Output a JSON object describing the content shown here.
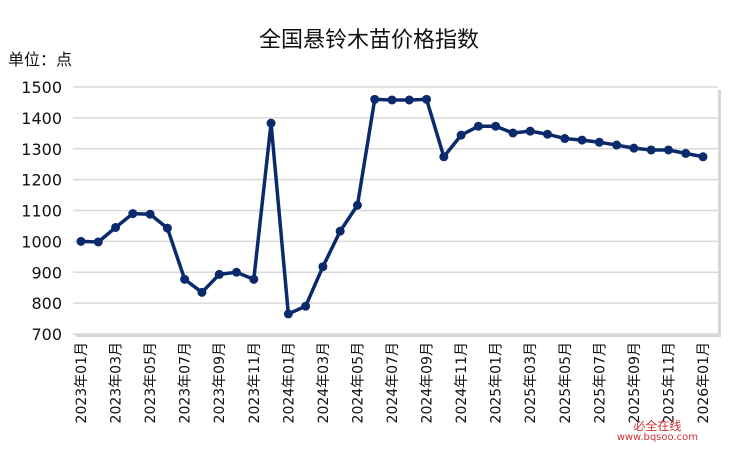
{
  "chart_data": {
    "type": "line",
    "title": "全国悬铃木苗价格指数",
    "ylabel": "单位：点",
    "ylim": [
      700,
      1500
    ],
    "yticks": [
      700,
      800,
      900,
      1000,
      1100,
      1200,
      1300,
      1400,
      1500
    ],
    "grid": true,
    "color": "#0b2a6b",
    "x": [
      "2023年01月",
      "2023年02月",
      "2023年03月",
      "2023年04月",
      "2023年05月",
      "2023年06月",
      "2023年07月",
      "2023年08月",
      "2023年09月",
      "2023年10月",
      "2023年11月",
      "2023年12月",
      "2024年01月",
      "2024年02月",
      "2024年03月",
      "2024年04月",
      "2024年05月",
      "2024年06月",
      "2024年07月",
      "2024年08月",
      "2024年09月",
      "2024年10月",
      "2024年11月",
      "2024年12月",
      "2025年01月",
      "2025年02月",
      "2025年03月",
      "2025年04月",
      "2025年05月",
      "2025年06月",
      "2025年07月",
      "2025年08月",
      "2025年09月",
      "2025年10月",
      "2025年11月",
      "2025年12月",
      "2026年01月"
    ],
    "values": [
      1000,
      998,
      1045,
      1090,
      1088,
      1043,
      877,
      835,
      893,
      900,
      877,
      1383,
      765,
      790,
      918,
      1033,
      1117,
      1460,
      1458,
      1458,
      1460,
      1274,
      1344,
      1373,
      1373,
      1351,
      1357,
      1347,
      1333,
      1328,
      1321,
      1312,
      1302,
      1296,
      1296,
      1285,
      1274
    ],
    "xtick_every": 2
  },
  "watermark": {
    "brand": "必全在线",
    "url": "www.bqsoo.com"
  }
}
